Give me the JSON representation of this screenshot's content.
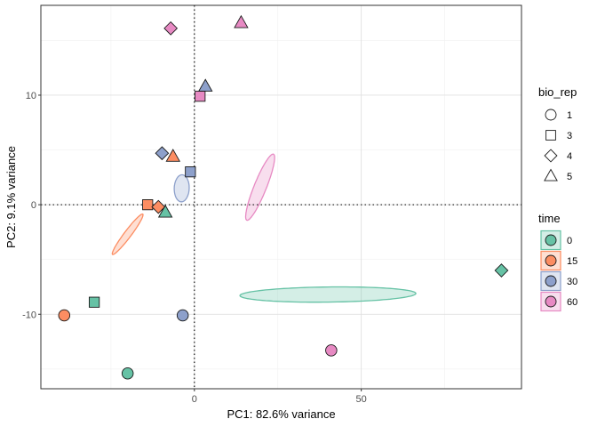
{
  "chart_data": {
    "type": "scatter",
    "xlabel": "PC1: 82.6% variance",
    "ylabel": "PC2: 9.1% variance",
    "xlim": [
      -46,
      98
    ],
    "ylim": [
      -16.8,
      18.2
    ],
    "x_ticks": [
      {
        "value": 0,
        "label": "0"
      },
      {
        "value": 50,
        "label": "50"
      }
    ],
    "y_ticks": [
      {
        "value": -10,
        "label": "-10"
      },
      {
        "value": 0,
        "label": "0"
      },
      {
        "value": 10,
        "label": "10"
      }
    ],
    "grid": true,
    "reference_lines": {
      "x": 0,
      "y": 0,
      "style": "dotted"
    },
    "legend_placement": "right",
    "shape_legend": {
      "title": "bio_rep",
      "entries": [
        {
          "label": "1",
          "shape": "circle"
        },
        {
          "label": "3",
          "shape": "square"
        },
        {
          "label": "4",
          "shape": "diamond"
        },
        {
          "label": "5",
          "shape": "triangle"
        }
      ]
    },
    "color_legend": {
      "title": "time",
      "entries": [
        {
          "label": "0",
          "color": "#66c2a5"
        },
        {
          "label": "15",
          "color": "#fc8d62"
        },
        {
          "label": "30",
          "color": "#8da0cb"
        },
        {
          "label": "60",
          "color": "#e78ac3"
        }
      ]
    },
    "ellipses": [
      {
        "group": "0",
        "color": "#66c2a5",
        "center": [
          40,
          -8.2
        ],
        "rx": 99,
        "ry": 8.5,
        "angle_deg": 0.7
      },
      {
        "group": "15",
        "color": "#fc8d62",
        "center": [
          -20,
          -2.7
        ],
        "rx": 28.3,
        "ry": 3.9,
        "angle_deg": 53
      },
      {
        "group": "30",
        "color": "#8da0cb",
        "center": [
          -3.8,
          1.5
        ],
        "rx": 15.2,
        "ry": 8.4,
        "angle_deg": 88
      },
      {
        "group": "60",
        "color": "#e78ac3",
        "center": [
          19.7,
          1.6
        ],
        "rx": 40,
        "ry": 6.9,
        "angle_deg": 68
      }
    ],
    "points": [
      {
        "x": 92,
        "y": -6,
        "time": "0",
        "bio_rep": "4"
      },
      {
        "x": -30,
        "y": -8.9,
        "time": "0",
        "bio_rep": "3"
      },
      {
        "x": -20,
        "y": -15.4,
        "time": "0",
        "bio_rep": "1"
      },
      {
        "x": -8.7,
        "y": -0.7,
        "time": "0",
        "bio_rep": "5"
      },
      {
        "x": -39,
        "y": -10.1,
        "time": "15",
        "bio_rep": "1"
      },
      {
        "x": -14,
        "y": 0,
        "time": "15",
        "bio_rep": "3"
      },
      {
        "x": -10.8,
        "y": -0.2,
        "time": "15",
        "bio_rep": "4"
      },
      {
        "x": -6.4,
        "y": 4.4,
        "time": "15",
        "bio_rep": "5"
      },
      {
        "x": -3.5,
        "y": -10.1,
        "time": "30",
        "bio_rep": "1"
      },
      {
        "x": -1.2,
        "y": 3,
        "time": "30",
        "bio_rep": "3"
      },
      {
        "x": -9.7,
        "y": 4.7,
        "time": "30",
        "bio_rep": "4"
      },
      {
        "x": 3.3,
        "y": 10.8,
        "time": "30",
        "bio_rep": "5"
      },
      {
        "x": 41,
        "y": -13.3,
        "time": "60",
        "bio_rep": "1"
      },
      {
        "x": 1.7,
        "y": 9.9,
        "time": "60",
        "bio_rep": "3"
      },
      {
        "x": -7.1,
        "y": 16.1,
        "time": "60",
        "bio_rep": "4"
      },
      {
        "x": 14,
        "y": 16.6,
        "time": "60",
        "bio_rep": "5"
      }
    ]
  }
}
